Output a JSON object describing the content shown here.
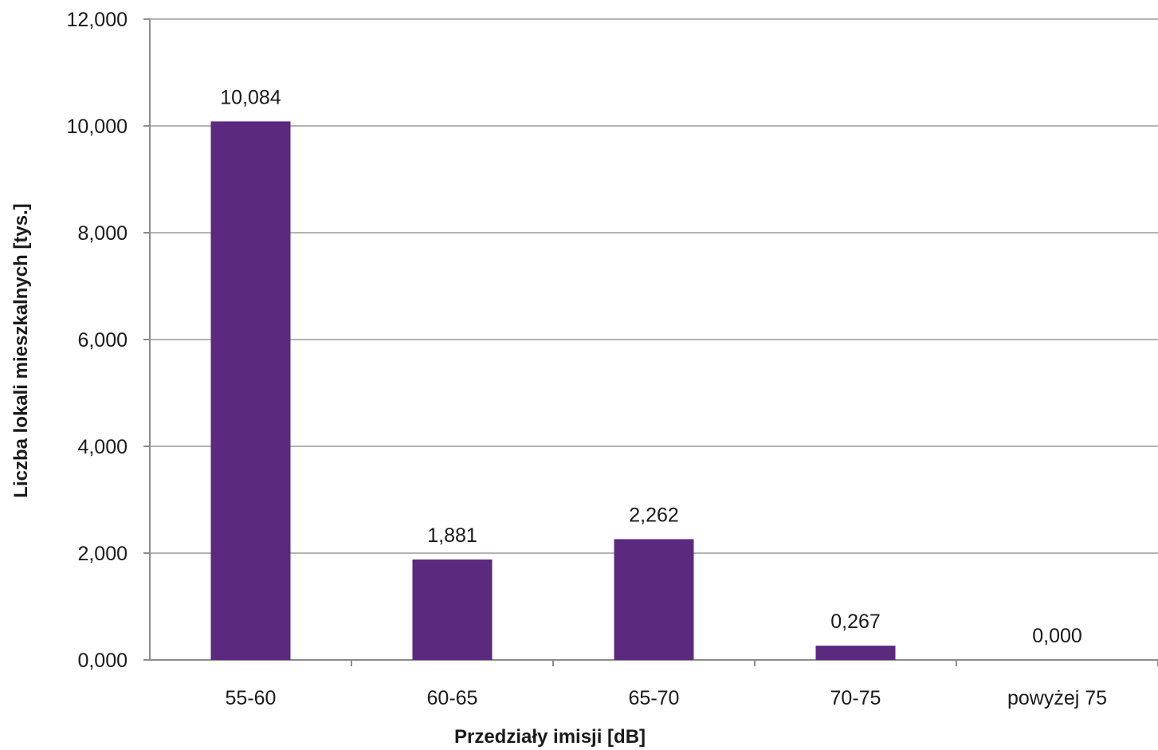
{
  "chart_data": {
    "type": "bar",
    "title": "",
    "xlabel": "Przedziały imisji [dB]",
    "ylabel": "Liczba lokali mieszkalnych [tys.]",
    "categories": [
      "55-60",
      "60-65",
      "65-70",
      "70-75",
      "powyżej 75"
    ],
    "values": [
      10.084,
      1.881,
      2.262,
      0.267,
      0.0
    ],
    "value_labels": [
      "10,084",
      "1,881",
      "2,262",
      "0,267",
      "0,000"
    ],
    "ylim": [
      0,
      12
    ],
    "yticks": [
      0,
      2,
      4,
      6,
      8,
      10,
      12
    ],
    "ytick_labels": [
      "0,000",
      "2,000",
      "4,000",
      "6,000",
      "8,000",
      "10,000",
      "12,000"
    ],
    "grid": true,
    "legend": "none",
    "bar_color": "#5b2a7e"
  }
}
